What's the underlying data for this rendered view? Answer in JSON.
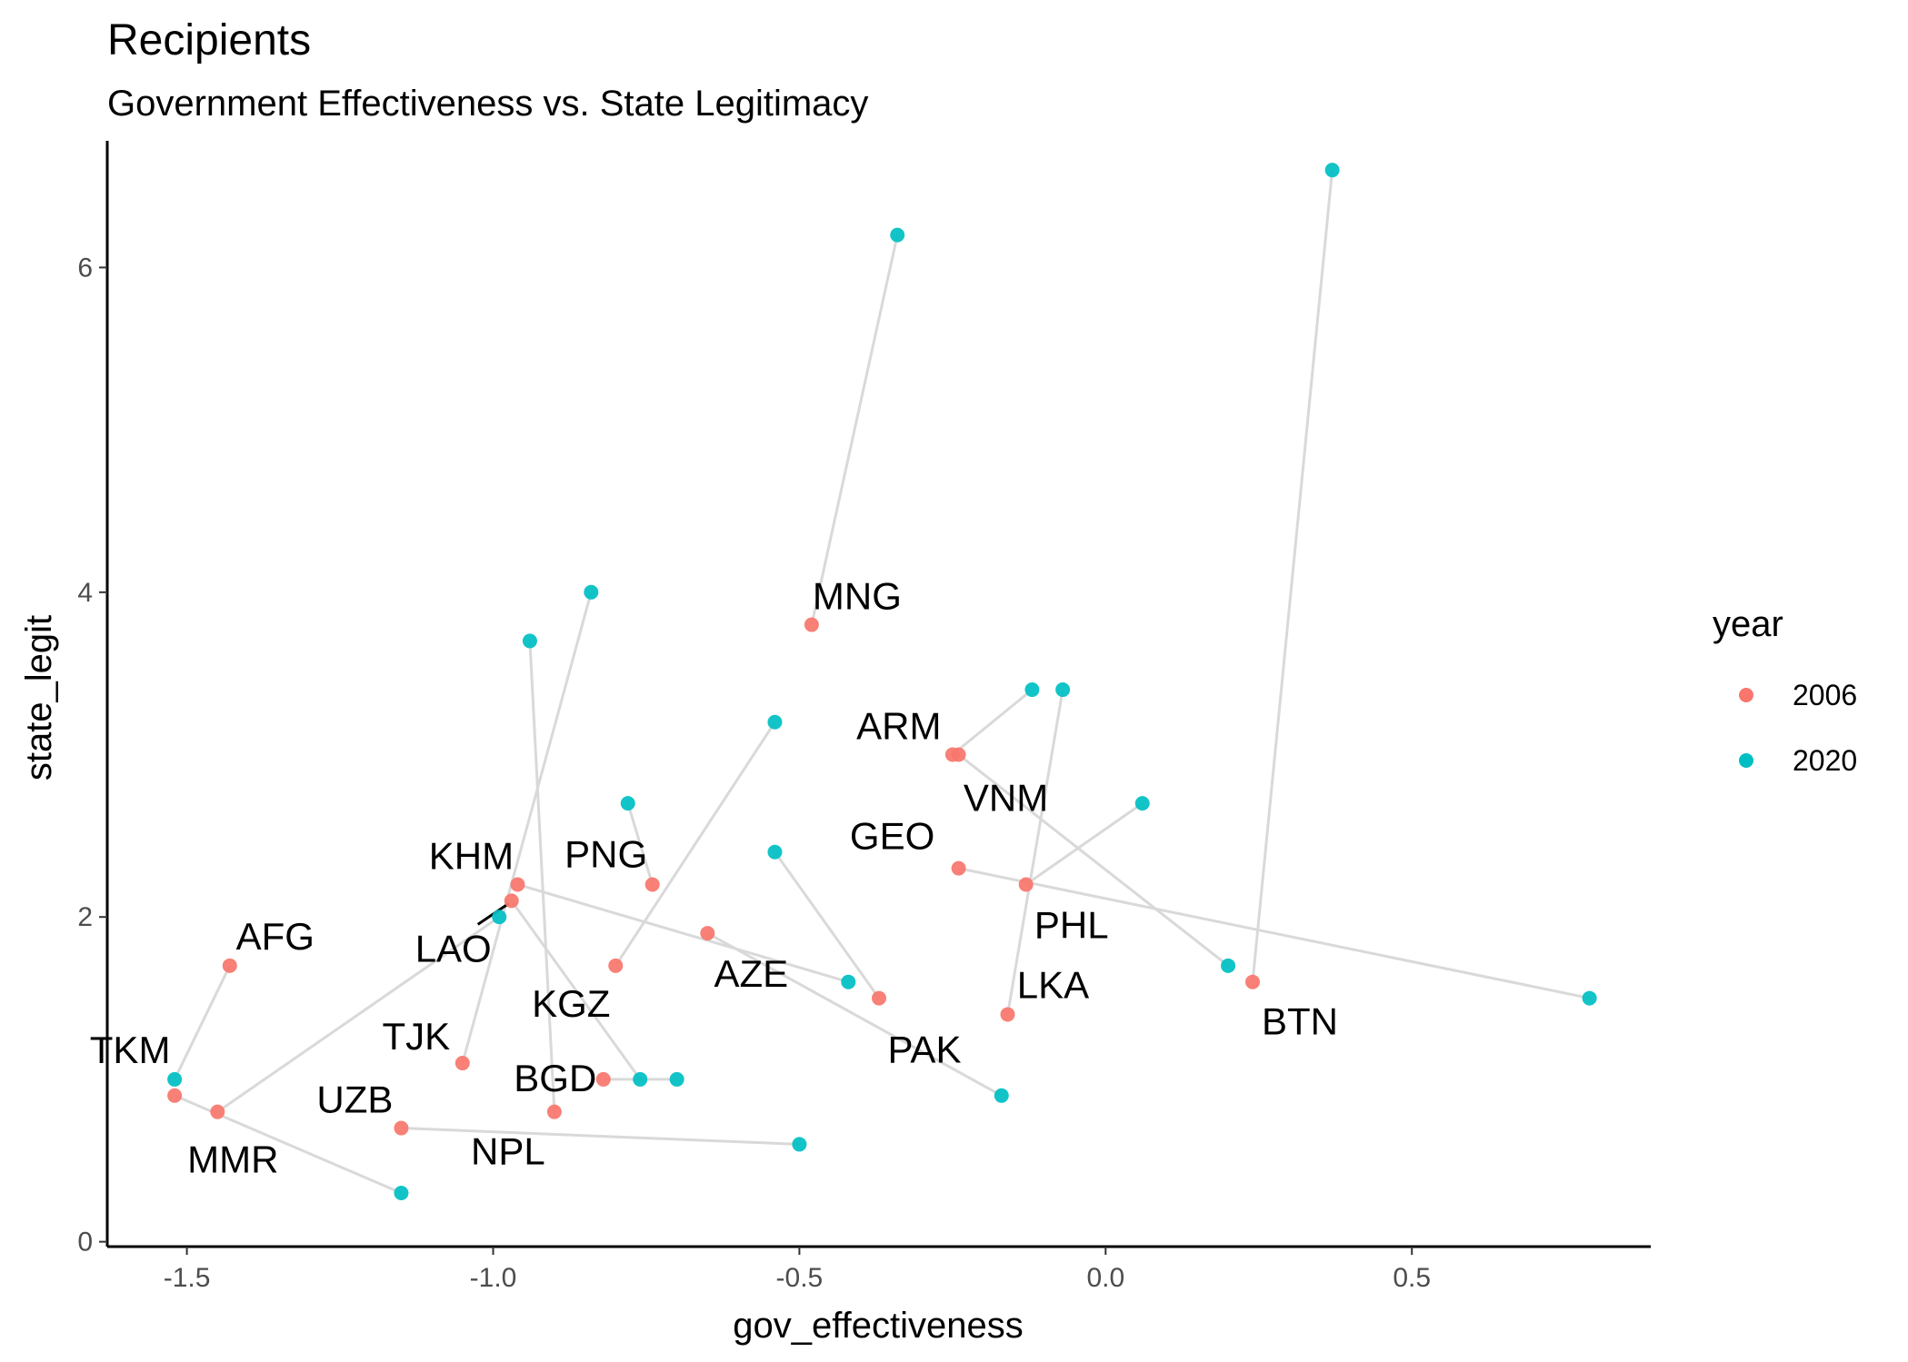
{
  "chart_data": {
    "type": "scatter",
    "title": "Recipients",
    "subtitle": "Government Effectiveness vs. State Legitimacy",
    "xlabel": "gov_effectiveness",
    "ylabel": "state_legit",
    "xlim": [
      -1.63,
      0.89
    ],
    "ylim": [
      -0.03,
      6.78
    ],
    "x_ticks": [
      -1.5,
      -1.0,
      -0.5,
      0.0,
      0.5
    ],
    "x_tick_labels": [
      "-1.5",
      "-1.0",
      "-0.5",
      "0.0",
      "0.5"
    ],
    "y_ticks": [
      0,
      2,
      4,
      6
    ],
    "y_tick_labels": [
      "0",
      "2",
      "4",
      "6"
    ],
    "grid": false,
    "legend": {
      "title": "year",
      "placement": "right",
      "entries": [
        {
          "label": "2006",
          "color": "#F8766D"
        },
        {
          "label": "2020",
          "color": "#00BFC4"
        }
      ]
    },
    "line_color": "#d9d9d9",
    "series": [
      {
        "name": "2006",
        "color": "#F8766D",
        "points": [
          {
            "label": "MNG",
            "x": -0.48,
            "y": 3.8
          },
          {
            "label": "ARM",
            "x": -0.25,
            "y": 3.0
          },
          {
            "label": "VNM",
            "x": -0.24,
            "y": 3.0
          },
          {
            "label": "GEO",
            "x": -0.24,
            "y": 2.3
          },
          {
            "label": "PHL",
            "x": -0.13,
            "y": 2.2
          },
          {
            "label": "LKA",
            "x": -0.16,
            "y": 1.4
          },
          {
            "label": "BTN",
            "x": 0.24,
            "y": 1.6
          },
          {
            "label": "PAK",
            "x": -0.37,
            "y": 1.5
          },
          {
            "label": "AZE",
            "x": -0.65,
            "y": 1.9
          },
          {
            "label": "PNG",
            "x": -0.74,
            "y": 2.2
          },
          {
            "label": "KGZ",
            "x": -0.8,
            "y": 1.7
          },
          {
            "label": "KHM",
            "x": -0.96,
            "y": 2.2
          },
          {
            "label": "LAO",
            "x": -0.97,
            "y": 2.1
          },
          {
            "label": "BGD",
            "x": -0.82,
            "y": 1.0
          },
          {
            "label": "NPL",
            "x": -0.9,
            "y": 0.8
          },
          {
            "label": "TJK",
            "x": -1.05,
            "y": 1.1
          },
          {
            "label": "UZB",
            "x": -1.15,
            "y": 0.7
          },
          {
            "label": "AFG",
            "x": -1.43,
            "y": 1.7
          },
          {
            "label": "MMR",
            "x": -1.45,
            "y": 0.8
          },
          {
            "label": "TKM",
            "x": -1.52,
            "y": 0.9
          }
        ]
      },
      {
        "name": "2020",
        "color": "#00BFC4",
        "points": [
          {
            "label": "MNG",
            "x": -0.34,
            "y": 6.2
          },
          {
            "label": "ARM",
            "x": -0.12,
            "y": 3.4
          },
          {
            "label": "VNM",
            "x": 0.2,
            "y": 1.7
          },
          {
            "label": "GEO",
            "x": 0.79,
            "y": 1.5
          },
          {
            "label": "PHL",
            "x": 0.06,
            "y": 2.7
          },
          {
            "label": "LKA",
            "x": -0.07,
            "y": 3.4
          },
          {
            "label": "BTN",
            "x": 0.37,
            "y": 6.6
          },
          {
            "label": "PAK",
            "x": -0.54,
            "y": 2.4
          },
          {
            "label": "AZE",
            "x": -0.17,
            "y": 0.9
          },
          {
            "label": "PNG",
            "x": -0.78,
            "y": 2.7
          },
          {
            "label": "KGZ",
            "x": -0.54,
            "y": 3.2
          },
          {
            "label": "KHM",
            "x": -0.42,
            "y": 1.6
          },
          {
            "label": "LAO",
            "x": -0.76,
            "y": 1.0
          },
          {
            "label": "BGD",
            "x": -0.7,
            "y": 1.0
          },
          {
            "label": "NPL",
            "x": -0.94,
            "y": 3.7
          },
          {
            "label": "TJK",
            "x": -0.84,
            "y": 4.0
          },
          {
            "label": "UZB",
            "x": -0.5,
            "y": 0.6
          },
          {
            "label": "AFG",
            "x": -1.52,
            "y": 1.0
          },
          {
            "label": "MMR",
            "x": -0.99,
            "y": 2.0
          },
          {
            "label": "TKM",
            "x": -1.15,
            "y": 0.3
          }
        ]
      }
    ]
  }
}
